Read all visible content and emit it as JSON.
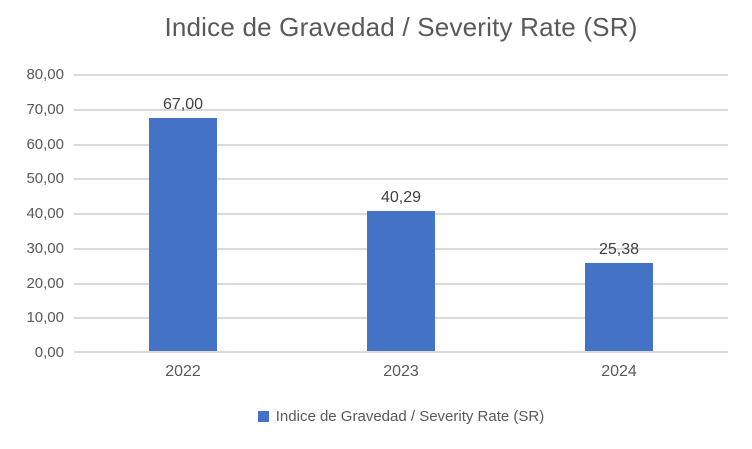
{
  "chart_data": {
    "type": "bar",
    "title": "Indice de Gravedad / Severity Rate (SR)",
    "categories": [
      "2022",
      "2023",
      "2024"
    ],
    "series": [
      {
        "name": "Indice de Gravedad / Severity Rate (SR)",
        "values": [
          67.0,
          40.29,
          25.38
        ],
        "value_labels": [
          "67,00",
          "40,29",
          "25,38"
        ]
      }
    ],
    "xlabel": "",
    "ylabel": "",
    "ylim": [
      0,
      80
    ],
    "ytick_step": 10,
    "ytick_labels": [
      "80,00",
      "70,00",
      "60,00",
      "50,00",
      "40,00",
      "30,00",
      "20,00",
      "10,00",
      "0,00"
    ],
    "grid": "horizontal",
    "legend": {
      "position": "bottom-center",
      "entries": [
        {
          "label": "Indice de Gravedad / Severity Rate (SR)",
          "swatch": "square"
        }
      ]
    },
    "colors": {
      "bar": "#4472c4",
      "gridline": "#d9d9d9",
      "axis_line": "#d9d9d9",
      "title_text": "#595959",
      "tick_text": "#595959",
      "data_label_text": "#404040",
      "background": "#ffffff"
    }
  }
}
